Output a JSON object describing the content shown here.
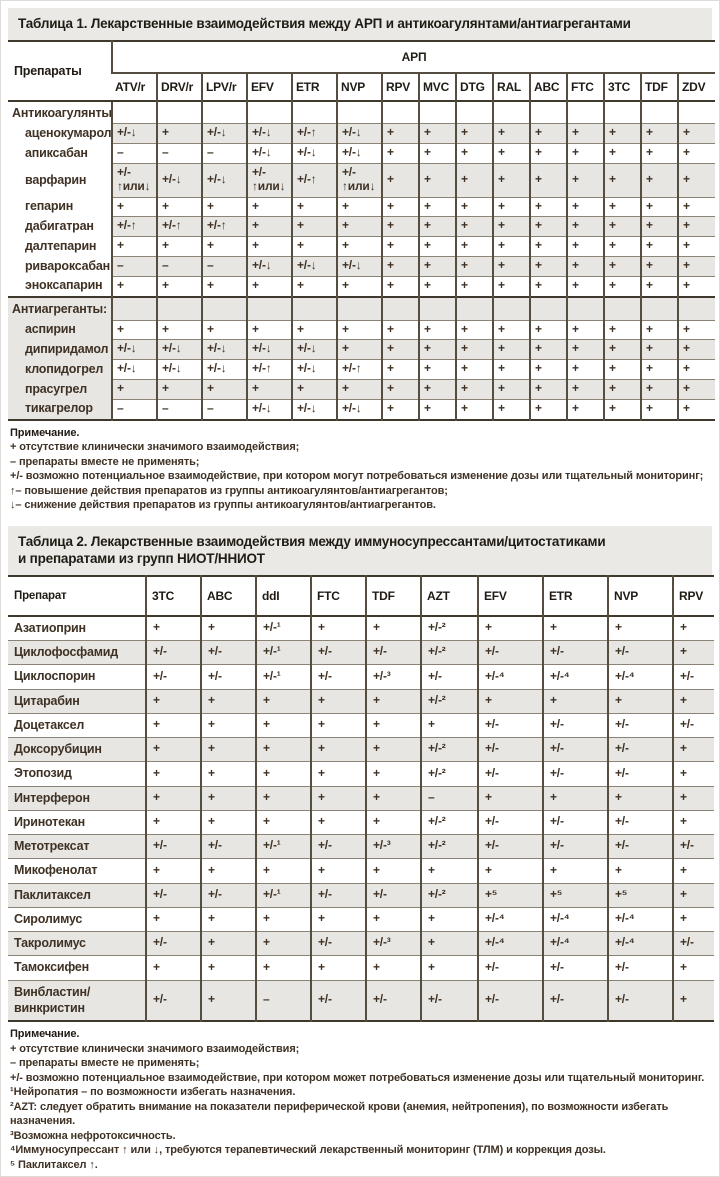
{
  "colors": {
    "table_text": "#3f3225",
    "title_text": "#201b14",
    "row_shade": "#e7e6e2",
    "title_bar_bg": "#eae9e5",
    "border_strong": "#3e382d",
    "border_vertical": "#554d40",
    "border_thin": "#8b8376"
  },
  "table1": {
    "title": "Таблица 1. Лекарственные взаимодействия между АРП и антикоагулянтами/антиагрегантами",
    "row_header": "Препараты",
    "col_group_label": "АРП",
    "columns": [
      "ATV/r",
      "DRV/r",
      "LPV/r",
      "EFV",
      "ETR",
      "NVP",
      "RPV",
      "MVC",
      "DTG",
      "RAL",
      "ABC",
      "FTC",
      "3TC",
      "TDF",
      "ZDV"
    ],
    "sections": [
      {
        "label": "Антикоагулянты:",
        "rows": [
          {
            "label": "аценокумарол",
            "values": [
              "+/-↓",
              "+",
              "+/-↓",
              "+/-↓",
              "+/-↑",
              "+/-↓",
              "+",
              "+",
              "+",
              "+",
              "+",
              "+",
              "+",
              "+",
              "+"
            ]
          },
          {
            "label": "апиксабан",
            "values": [
              "–",
              "–",
              "–",
              "+/-↓",
              "+/-↓",
              "+/-↓",
              "+",
              "+",
              "+",
              "+",
              "+",
              "+",
              "+",
              "+",
              "+"
            ]
          },
          {
            "label": "варфарин",
            "values": [
              "+/-\n↑или↓",
              "+/-↓",
              "+/-↓",
              "+/-\n↑или↓",
              "+/-↑",
              "+/-\n↑или↓",
              "+",
              "+",
              "+",
              "+",
              "+",
              "+",
              "+",
              "+",
              "+"
            ]
          },
          {
            "label": "гепарин",
            "values": [
              "+",
              "+",
              "+",
              "+",
              "+",
              "+",
              "+",
              "+",
              "+",
              "+",
              "+",
              "+",
              "+",
              "+",
              "+"
            ]
          },
          {
            "label": "дабигатран",
            "values": [
              "+/-↑",
              "+/-↑",
              "+/-↑",
              "+",
              "+",
              "+",
              "+",
              "+",
              "+",
              "+",
              "+",
              "+",
              "+",
              "+",
              "+"
            ]
          },
          {
            "label": "далтепарин",
            "values": [
              "+",
              "+",
              "+",
              "+",
              "+",
              "+",
              "+",
              "+",
              "+",
              "+",
              "+",
              "+",
              "+",
              "+",
              "+"
            ]
          },
          {
            "label": "ривароксабан",
            "values": [
              "–",
              "–",
              "–",
              "+/-↓",
              "+/-↓",
              "+/-↓",
              "+",
              "+",
              "+",
              "+",
              "+",
              "+",
              "+",
              "+",
              "+"
            ]
          },
          {
            "label": "эноксапарин",
            "values": [
              "+",
              "+",
              "+",
              "+",
              "+",
              "+",
              "+",
              "+",
              "+",
              "+",
              "+",
              "+",
              "+",
              "+",
              "+"
            ]
          }
        ]
      },
      {
        "label": "Антиагреганты:",
        "rows": [
          {
            "label": "аспирин",
            "values": [
              "+",
              "+",
              "+",
              "+",
              "+",
              "+",
              "+",
              "+",
              "+",
              "+",
              "+",
              "+",
              "+",
              "+",
              "+"
            ]
          },
          {
            "label": "дипиридамол",
            "values": [
              "+/-↓",
              "+/-↓",
              "+/-↓",
              "+/-↓",
              "+/-↓",
              "+",
              "+",
              "+",
              "+",
              "+",
              "+",
              "+",
              "+",
              "+",
              "+"
            ]
          },
          {
            "label": "клопидогрел",
            "values": [
              "+/-↓",
              "+/-↓",
              "+/-↓",
              "+/-↑",
              "+/-↓",
              "+/-↑",
              "+",
              "+",
              "+",
              "+",
              "+",
              "+",
              "+",
              "+",
              "+"
            ]
          },
          {
            "label": "прасугрел",
            "values": [
              "+",
              "+",
              "+",
              "+",
              "+",
              "+",
              "+",
              "+",
              "+",
              "+",
              "+",
              "+",
              "+",
              "+",
              "+"
            ]
          },
          {
            "label": "тикагрелор",
            "values": [
              "–",
              "–",
              "–",
              "+/-↓",
              "+/-↓",
              "+/-↓",
              "+",
              "+",
              "+",
              "+",
              "+",
              "+",
              "+",
              "+",
              "+"
            ]
          }
        ]
      }
    ],
    "notes": {
      "title": "Примечание.",
      "lines": [
        "+ отсутствие клинически значимого взаимодействия;",
        "– препараты вместе не применять;",
        "+/- возможно потенциальное взаимодействие, при котором могут потребоваться изменение дозы или тщательный мониторинг;",
        "↑– повышение действия препаратов из группы антикоагулянтов/антиагрегантов;",
        "↓– снижение действия препаратов из группы антикоагулянтов/антиагрегантов."
      ]
    }
  },
  "table2": {
    "title_line1": "Таблица 2. Лекарственные взаимодействия между иммуносупрессантами/цитостатиками",
    "title_line2": "и препаратами из групп  НИОТ/ННИОТ",
    "row_header": "Препарат",
    "columns": [
      "3TC",
      "ABC",
      "ddI",
      "FTC",
      "TDF",
      "AZT",
      "EFV",
      "ETR",
      "NVP",
      "RPV"
    ],
    "rows": [
      {
        "label": "Азатиоприн",
        "values": [
          "+",
          "+",
          "+/-¹",
          "+",
          "+",
          "+/-²",
          "+",
          "+",
          "+",
          "+"
        ]
      },
      {
        "label": "Циклофосфамид",
        "values": [
          "+/-",
          "+/-",
          "+/-¹",
          "+/-",
          "+/-",
          "+/-²",
          "+/-",
          "+/-",
          "+/-",
          "+"
        ]
      },
      {
        "label": "Циклоспорин",
        "values": [
          "+/-",
          "+/-",
          "+/-¹",
          "+/-",
          "+/-³",
          "+/-",
          "+/-⁴",
          "+/-⁴",
          "+/-⁴",
          "+/-"
        ]
      },
      {
        "label": "Цитарабин",
        "values": [
          "+",
          "+",
          "+",
          "+",
          "+",
          "+/-²",
          "+",
          "+",
          "+",
          "+"
        ]
      },
      {
        "label": "Доцетаксел",
        "values": [
          "+",
          "+",
          "+",
          "+",
          "+",
          "+",
          "+/-",
          "+/-",
          "+/-",
          "+/-"
        ]
      },
      {
        "label": "Доксорубицин",
        "values": [
          "+",
          "+",
          "+",
          "+",
          "+",
          "+/-²",
          "+/-",
          "+/-",
          "+/-",
          "+"
        ]
      },
      {
        "label": "Этопозид",
        "values": [
          "+",
          "+",
          "+",
          "+",
          "+",
          "+/-²",
          "+/-",
          "+/-",
          "+/-",
          "+"
        ]
      },
      {
        "label": "Интерферон",
        "values": [
          "+",
          "+",
          "+",
          "+",
          "+",
          "–",
          "+",
          "+",
          "+",
          "+"
        ]
      },
      {
        "label": "Иринотекан",
        "values": [
          "+",
          "+",
          "+",
          "+",
          "+",
          "+/-²",
          "+/-",
          "+/-",
          "+/-",
          "+"
        ]
      },
      {
        "label": "Метотрексат",
        "values": [
          "+/-",
          "+/-",
          "+/-¹",
          "+/-",
          "+/-³",
          "+/-²",
          "+/-",
          "+/-",
          "+/-",
          "+/-"
        ]
      },
      {
        "label": "Микофенолат",
        "values": [
          "+",
          "+",
          "+",
          "+",
          "+",
          "+",
          "+",
          "+",
          "+",
          "+"
        ]
      },
      {
        "label": "Паклитаксел",
        "values": [
          "+/-",
          "+/-",
          "+/-¹",
          "+/-",
          "+/-",
          "+/-²",
          "+⁵",
          "+⁵",
          "+⁵",
          "+"
        ]
      },
      {
        "label": "Сиролимус",
        "values": [
          "+",
          "+",
          "+",
          "+",
          "+",
          "+",
          "+/-⁴",
          "+/-⁴",
          "+/-⁴",
          "+"
        ]
      },
      {
        "label": "Такролимус",
        "values": [
          "+/-",
          "+",
          "+",
          "+/-",
          "+/-³",
          "+",
          "+/-⁴",
          "+/-⁴",
          "+/-⁴",
          "+/-"
        ]
      },
      {
        "label": "Тамоксифен",
        "values": [
          "+",
          "+",
          "+",
          "+",
          "+",
          "+",
          "+/-",
          "+/-",
          "+/-",
          "+"
        ]
      },
      {
        "label": "Винбластин/винкристин",
        "values": [
          "+/-",
          "+",
          "–",
          "+/-",
          "+/-",
          "+/-",
          "+/-",
          "+/-",
          "+/-",
          "+"
        ]
      }
    ],
    "notes": {
      "title": "Примечание.",
      "lines": [
        "+ отсутствие клинически значимого взаимодействия;",
        "–  препараты вместе не применять;",
        "+/- возможно потенциальное взаимодействие, при котором может потребоваться изменение дозы или тщательный мониторинг.",
        "¹Нейропатия – по возможности избегать назначения.",
        "²AZT: следует обратить внимание на показатели периферической крови (анемия, нейтропения), по возможности избегать  назначения.",
        "³Возможна нефротоксичность.",
        "⁴Иммуносупрессант ↑ или ↓, требуются терапевтический лекарственный мониторинг (ТЛМ) и коррекция дозы.",
        "⁵ Паклитаксел ↑."
      ]
    }
  }
}
